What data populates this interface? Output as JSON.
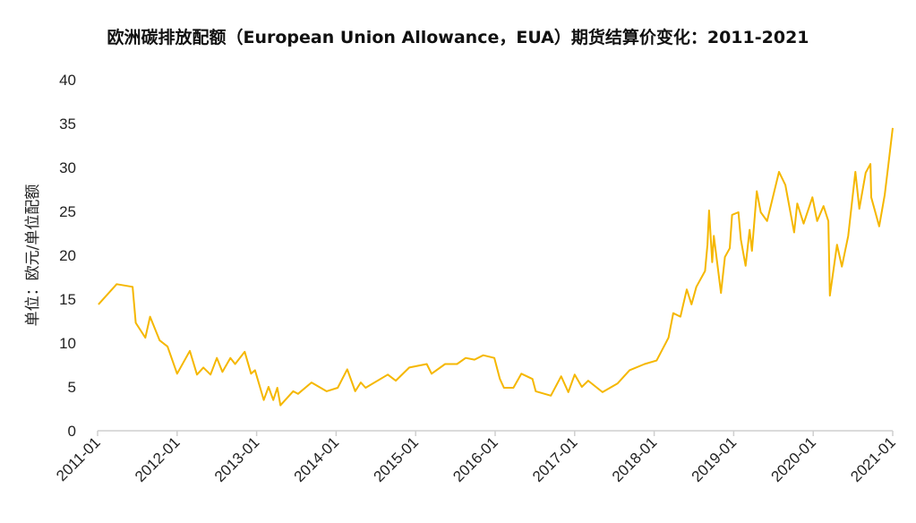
{
  "chart_data": {
    "type": "line",
    "title": "欧洲碳排放配额（European Union Allowance，EUA）期货结算价变化：2011-2021",
    "xlabel": "",
    "ylabel": "单位：欧元/单位配额",
    "ylim": [
      0,
      40
    ],
    "xlim": [
      2011.0,
      2021.0
    ],
    "yticks": [
      0,
      5,
      10,
      15,
      20,
      25,
      30,
      35,
      40
    ],
    "xticks": [
      {
        "value": 2011,
        "label": "2011-01"
      },
      {
        "value": 2012,
        "label": "2012-01"
      },
      {
        "value": 2013,
        "label": "2013-01"
      },
      {
        "value": 2014,
        "label": "2014-01"
      },
      {
        "value": 2015,
        "label": "2015-01"
      },
      {
        "value": 2016,
        "label": "2016-01"
      },
      {
        "value": 2017,
        "label": "2017-01"
      },
      {
        "value": 2018,
        "label": "2018-01"
      },
      {
        "value": 2019,
        "label": "2019-01"
      },
      {
        "value": 2020,
        "label": "2020-01"
      },
      {
        "value": 2021,
        "label": "2021-01"
      }
    ],
    "grid": false,
    "series": [
      {
        "name": "EUA",
        "color": "#F5B700",
        "x": [
          2011.01,
          2011.24,
          2011.44,
          2011.48,
          2011.6,
          2011.66,
          2011.78,
          2011.88,
          2012.0,
          2012.16,
          2012.25,
          2012.33,
          2012.42,
          2012.5,
          2012.57,
          2012.67,
          2012.73,
          2012.85,
          2012.93,
          2012.98,
          2013.09,
          2013.15,
          2013.21,
          2013.26,
          2013.3,
          2013.46,
          2013.52,
          2013.69,
          2013.88,
          2014.02,
          2014.14,
          2014.24,
          2014.31,
          2014.37,
          2014.65,
          2014.75,
          2014.92,
          2015.14,
          2015.2,
          2015.37,
          2015.52,
          2015.63,
          2015.74,
          2015.85,
          2015.99,
          2016.06,
          2016.11,
          2016.23,
          2016.33,
          2016.47,
          2016.51,
          2016.7,
          2016.83,
          2016.92,
          2017.0,
          2017.09,
          2017.17,
          2017.35,
          2017.54,
          2017.69,
          2017.88,
          2018.03,
          2018.18,
          2018.24,
          2018.33,
          2018.41,
          2018.47,
          2018.53,
          2018.64,
          2018.67,
          2018.69,
          2018.73,
          2018.75,
          2018.84,
          2018.89,
          2018.95,
          2018.98,
          2019.06,
          2019.09,
          2019.15,
          2019.2,
          2019.23,
          2019.29,
          2019.34,
          2019.42,
          2019.57,
          2019.65,
          2019.76,
          2019.8,
          2019.88,
          2019.99,
          2020.05,
          2020.13,
          2020.19,
          2020.21,
          2020.3,
          2020.36,
          2020.44,
          2020.53,
          2020.58,
          2020.66,
          2020.72,
          2020.73,
          2020.83,
          2020.9,
          2020.95,
          2021.0
        ],
        "y": [
          14.4,
          16.7,
          16.4,
          12.3,
          10.6,
          13.0,
          10.3,
          9.6,
          6.5,
          9.1,
          6.4,
          7.2,
          6.4,
          8.3,
          6.7,
          8.3,
          7.6,
          9.0,
          6.5,
          6.9,
          3.5,
          5.0,
          3.5,
          4.9,
          2.9,
          4.5,
          4.2,
          5.5,
          4.5,
          4.9,
          7.0,
          4.5,
          5.5,
          4.9,
          6.4,
          5.7,
          7.2,
          7.6,
          6.5,
          7.6,
          7.6,
          8.3,
          8.1,
          8.6,
          8.3,
          5.9,
          4.9,
          4.9,
          6.5,
          5.9,
          4.5,
          4.0,
          6.2,
          4.4,
          6.4,
          5.0,
          5.7,
          4.4,
          5.4,
          6.9,
          7.6,
          8.0,
          10.6,
          13.4,
          13.0,
          16.1,
          14.4,
          16.4,
          18.2,
          21.2,
          25.1,
          19.2,
          22.2,
          15.7,
          19.8,
          20.8,
          24.6,
          24.9,
          21.8,
          18.8,
          22.9,
          20.5,
          27.3,
          24.9,
          23.9,
          29.5,
          28.0,
          22.6,
          25.9,
          23.6,
          26.6,
          23.9,
          25.6,
          23.9,
          15.4,
          21.2,
          18.7,
          22.2,
          29.5,
          25.3,
          29.4,
          30.4,
          26.6,
          23.3,
          26.9,
          30.7,
          34.5
        ]
      }
    ]
  }
}
